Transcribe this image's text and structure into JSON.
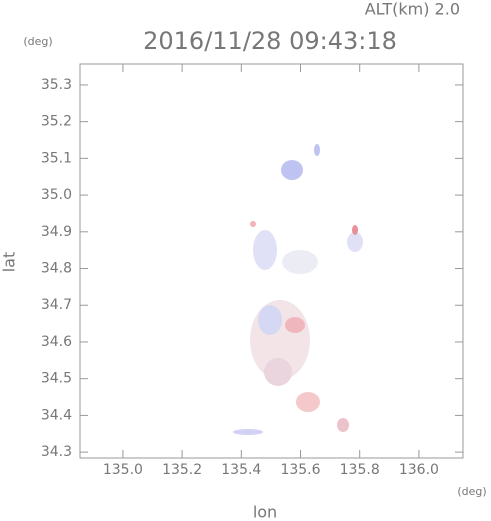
{
  "chart_data": {
    "type": "map",
    "title": "2016/11/28 09:43:18",
    "subtitle": "ALT(km) 2.0",
    "x_label": "lon",
    "y_label": "lat",
    "x_unit": "(deg)",
    "y_unit": "(deg)",
    "xlim": [
      134.855,
      136.149
    ],
    "ylim": [
      34.284,
      35.357
    ],
    "xticks": [
      {
        "value": 135,
        "label": "135.0"
      },
      135.2,
      135.4,
      135.6,
      135.8,
      {
        "value": 136,
        "label": "136.0"
      }
    ],
    "yticks": [
      {
        "value": 34.3,
        "label": "34.3"
      },
      34.4,
      34.5,
      34.6,
      34.7,
      34.8,
      34.9,
      {
        "value": 35,
        "label": "35.0"
      },
      35.1,
      35.2,
      35.3
    ],
    "grid": false
  }
}
